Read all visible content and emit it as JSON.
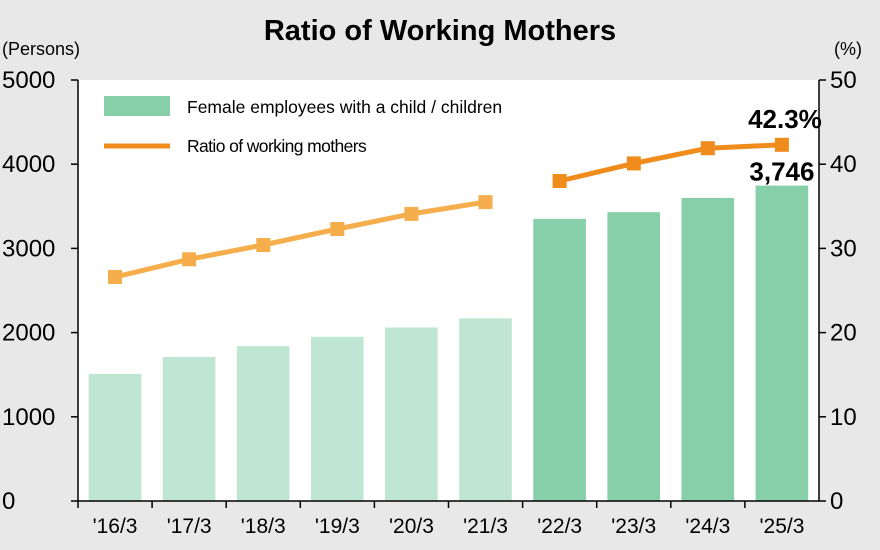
{
  "chart_data": {
    "type": "bar",
    "title": "Ratio of  Working Mothers",
    "y_left_label": "(Persons)",
    "y_right_label": "(%)",
    "categories": [
      "'16/3",
      "'17/3",
      "'18/3",
      "'19/3",
      "'20/3",
      "'21/3",
      "'22/3",
      "'23/3",
      "'24/3",
      "'25/3"
    ],
    "ylim_left": [
      0,
      5000
    ],
    "ylim_right": [
      0,
      50
    ],
    "y_left_ticks": [
      0,
      1000,
      2000,
      3000,
      4000,
      5000
    ],
    "y_right_ticks": [
      0,
      10,
      20,
      30,
      40,
      50
    ],
    "grid": false,
    "legend_position": "top-left",
    "series": [
      {
        "name": "Female employees with a child / children",
        "type": "bar",
        "axis": "left",
        "values": [
          1510,
          1710,
          1840,
          1950,
          2060,
          2170,
          3350,
          3430,
          3600,
          3746
        ]
      },
      {
        "name": "Ratio of working mothers",
        "type": "line",
        "axis": "right",
        "segments": [
          [
            0,
            5
          ],
          [
            6,
            9
          ]
        ],
        "values": [
          26.6,
          28.7,
          30.4,
          32.3,
          34.1,
          35.5,
          38.0,
          40.1,
          41.9,
          42.3
        ]
      }
    ],
    "annotations": [
      {
        "series": 1,
        "index": 9,
        "text": "42.3%"
      },
      {
        "series": 0,
        "index": 9,
        "text": "3,746"
      }
    ],
    "colors": {
      "bar_light": "#bfe5d3",
      "bar_dark": "#86cfa9",
      "line_light": "#f6ae4c",
      "line_dark": "#f08c1c",
      "axis": "#000000",
      "background": "#e8e8e8",
      "plot_background": "#ffffff"
    },
    "highlight_from_index": 6
  }
}
